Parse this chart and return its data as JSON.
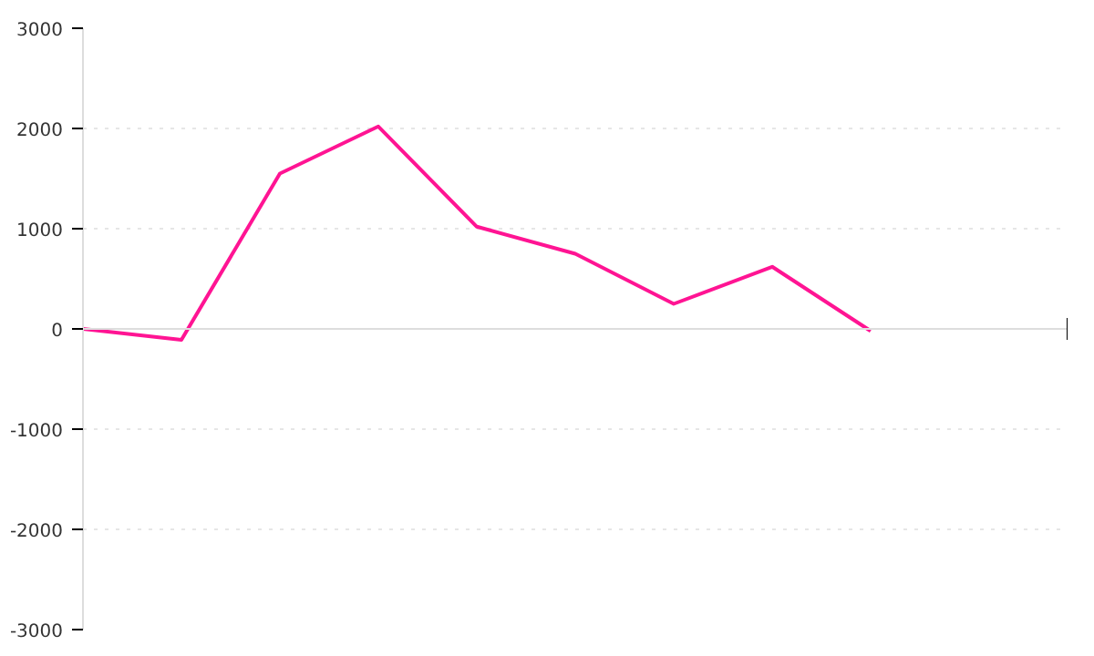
{
  "chart_data": {
    "type": "line",
    "categories": [
      null,
      null,
      null,
      null,
      null,
      null,
      null,
      null,
      null
    ],
    "series": [
      {
        "color": "#ff1493",
        "values": [
          0,
          -110,
          1550,
          2020,
          1020,
          750,
          250,
          620,
          -20
        ]
      }
    ],
    "ylim": [
      -3000,
      3000
    ],
    "yticks": [
      -3000,
      -2000,
      -1000,
      0,
      1000,
      2000,
      3000
    ],
    "grid": "y",
    "tick_labels": "y",
    "marker": "none",
    "line_style": "solid"
  }
}
